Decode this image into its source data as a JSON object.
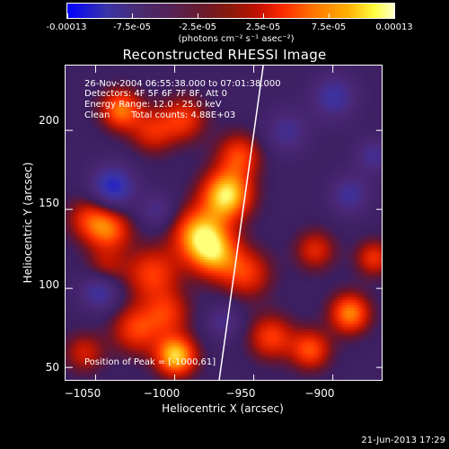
{
  "colorbar": {
    "tick_labels": [
      "-0.00013",
      "-7.5e-05",
      "-2.5e-05",
      "2.5e-05",
      "7.5e-05",
      "0.00013"
    ],
    "range": [
      -0.00013,
      0.00013
    ],
    "unit_label": "(photons cm⁻² s⁻¹ asec⁻²)",
    "colors": [
      "#0000ff",
      "#3a34a8",
      "#552255",
      "#8a1a0a",
      "#ff2a00",
      "#ffb000",
      "#ffffcc"
    ]
  },
  "info": {
    "line1": "26-Nov-2004 06:55:38.000 to 07:01:38.000",
    "line2": "Detectors: 4F 5F 6F 7F 8F, Att 0",
    "line3": "Energy Range: 12.0 - 25.0 keV",
    "line4_left": "Clean",
    "line4_right": "Total counts: 4.88E+03",
    "peak": "Position of Peak = [-1000,61]"
  },
  "timestamp": "21-Jun-2013 17:29",
  "chart_data": {
    "type": "heatmap",
    "title": "Reconstructed RHESSI Image",
    "xlabel": "Heliocentric X (arcsec)",
    "ylabel": "Heliocentric Y (arcsec)",
    "xlim": [
      -1069,
      -868
    ],
    "ylim": [
      41,
      241
    ],
    "x_ticks": [
      -1050,
      -1000,
      -950,
      -900
    ],
    "y_ticks": [
      50,
      100,
      150,
      200
    ],
    "x_tick_labels": [
      "−1050",
      "−1000",
      "−950",
      "−900"
    ],
    "y_tick_labels": [
      "50",
      "100",
      "150",
      "200"
    ],
    "limb_line": [
      [
        -972,
        41
      ],
      [
        -944,
        241
      ]
    ],
    "blobs": [
      {
        "x": -1035,
        "y": 214,
        "intensity": 0.7,
        "size": 9
      },
      {
        "x": -1015,
        "y": 200,
        "intensity": 0.45,
        "size": 10
      },
      {
        "x": -995,
        "y": 208,
        "intensity": 0.5,
        "size": 10
      },
      {
        "x": -1055,
        "y": 145,
        "intensity": 0.45,
        "size": 10
      },
      {
        "x": -1042,
        "y": 138,
        "intensity": 0.6,
        "size": 10
      },
      {
        "x": -1045,
        "y": 112,
        "intensity": 0.4,
        "size": 9
      },
      {
        "x": -1015,
        "y": 110,
        "intensity": 0.55,
        "size": 12
      },
      {
        "x": -985,
        "y": 135,
        "intensity": 0.85,
        "size": 12
      },
      {
        "x": -968,
        "y": 160,
        "intensity": 1.0,
        "size": 11
      },
      {
        "x": -960,
        "y": 185,
        "intensity": 0.55,
        "size": 10
      },
      {
        "x": -975,
        "y": 122,
        "intensity": 0.65,
        "size": 11
      },
      {
        "x": -955,
        "y": 110,
        "intensity": 0.5,
        "size": 11
      },
      {
        "x": -1025,
        "y": 75,
        "intensity": 0.55,
        "size": 11
      },
      {
        "x": -1000,
        "y": 58,
        "intensity": 0.95,
        "size": 9
      },
      {
        "x": -1005,
        "y": 85,
        "intensity": 0.45,
        "size": 10
      },
      {
        "x": -940,
        "y": 70,
        "intensity": 0.55,
        "size": 10
      },
      {
        "x": -915,
        "y": 62,
        "intensity": 0.6,
        "size": 9
      },
      {
        "x": -890,
        "y": 85,
        "intensity": 0.75,
        "size": 9
      },
      {
        "x": -912,
        "y": 125,
        "intensity": 0.45,
        "size": 9
      },
      {
        "x": -875,
        "y": 120,
        "intensity": 0.5,
        "size": 8
      },
      {
        "x": -1058,
        "y": 60,
        "intensity": 0.4,
        "size": 9
      }
    ],
    "dips": [
      {
        "x": -1040,
        "y": 165,
        "intensity": -0.7,
        "size": 10
      },
      {
        "x": -1048,
        "y": 100,
        "intensity": -0.6,
        "size": 9
      },
      {
        "x": -900,
        "y": 222,
        "intensity": -0.5,
        "size": 10
      },
      {
        "x": -930,
        "y": 200,
        "intensity": -0.4,
        "size": 10
      },
      {
        "x": -890,
        "y": 160,
        "intensity": -0.45,
        "size": 9
      },
      {
        "x": -1012,
        "y": 150,
        "intensity": -0.35,
        "size": 8
      },
      {
        "x": -970,
        "y": 80,
        "intensity": -0.35,
        "size": 8
      },
      {
        "x": -875,
        "y": 185,
        "intensity": -0.4,
        "size": 8
      }
    ]
  }
}
